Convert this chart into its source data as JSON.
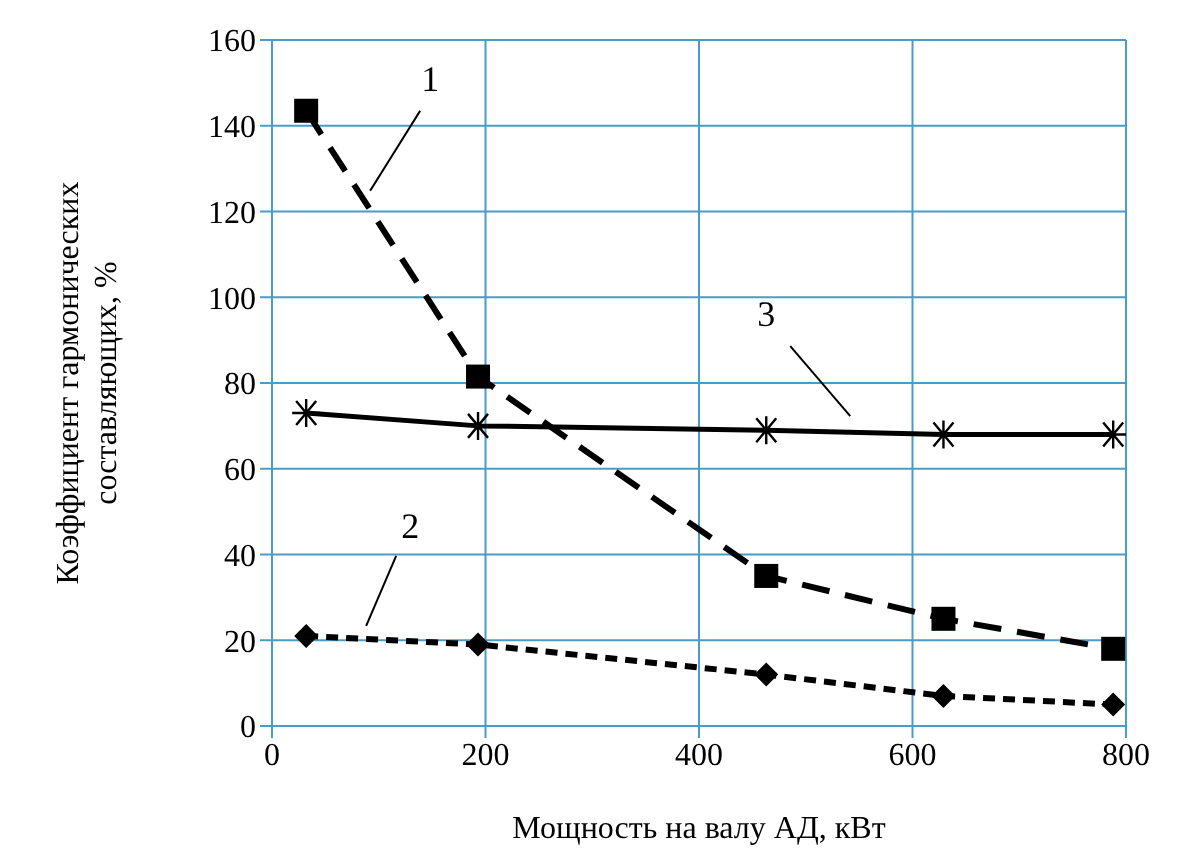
{
  "chart_data": {
    "type": "line",
    "xlabel": "Мощность на валу АД, кВт",
    "ylabel": "Коэффициент гармонических\nсоставляющих, %",
    "x": [
      32,
      193,
      463,
      629,
      788
    ],
    "series": [
      {
        "name": "1",
        "color": "#000000",
        "values": [
          143.5,
          81.5,
          35,
          25,
          18
        ],
        "marker": "square",
        "line_style": "dashed"
      },
      {
        "name": "2",
        "color": "#000000",
        "values": [
          21,
          19,
          12,
          7,
          5
        ],
        "marker": "diamond",
        "line_style": "dotted"
      },
      {
        "name": "3",
        "color": "#000000",
        "values": [
          73,
          70,
          69,
          68,
          68
        ],
        "marker": "cross",
        "line_style": "solid"
      }
    ],
    "xlim": [
      0,
      800
    ],
    "xticks": [
      0,
      200,
      400,
      600,
      800
    ],
    "ylim": [
      0,
      160
    ],
    "yticks": [
      0,
      20,
      40,
      60,
      80,
      100,
      120,
      140,
      160
    ],
    "grid": true,
    "legend": false
  }
}
